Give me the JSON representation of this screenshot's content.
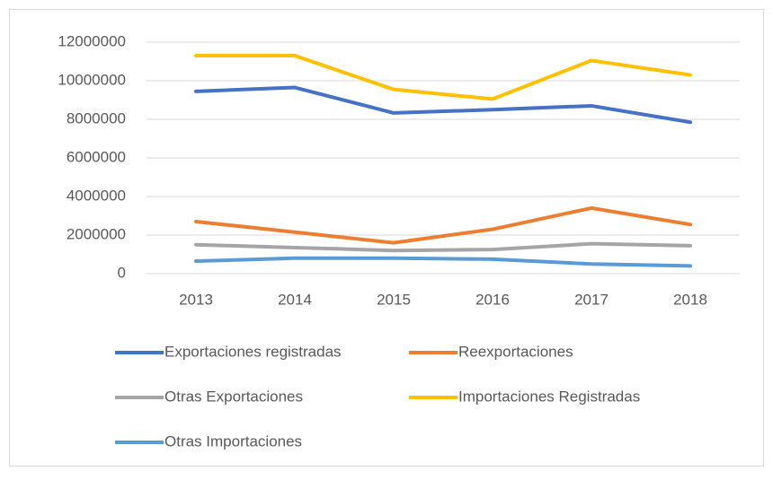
{
  "chart_data": {
    "type": "line",
    "categories": [
      "2013",
      "2014",
      "2015",
      "2016",
      "2017",
      "2018"
    ],
    "series": [
      {
        "name": "Exportaciones registradas",
        "color": "#4472c4",
        "values": [
          9450000,
          9650000,
          8330000,
          8500000,
          8700000,
          7850000
        ]
      },
      {
        "name": "Reexportaciones",
        "color": "#ed7d31",
        "values": [
          2700000,
          2150000,
          1600000,
          2300000,
          3400000,
          2550000
        ]
      },
      {
        "name": "Otras Exportaciones",
        "color": "#a5a5a5",
        "values": [
          1500000,
          1350000,
          1200000,
          1250000,
          1550000,
          1450000
        ]
      },
      {
        "name": "Importaciones Registradas",
        "color": "#ffc000",
        "values": [
          11300000,
          11300000,
          9550000,
          9050000,
          11050000,
          10300000
        ]
      },
      {
        "name": "Otras Importaciones",
        "color": "#5b9bd5",
        "values": [
          650000,
          800000,
          800000,
          750000,
          500000,
          400000
        ]
      }
    ],
    "ylim": [
      0,
      12000000
    ],
    "yticks": [
      0,
      2000000,
      4000000,
      6000000,
      8000000,
      10000000,
      12000000
    ],
    "grid": true,
    "legend": "bottom"
  }
}
